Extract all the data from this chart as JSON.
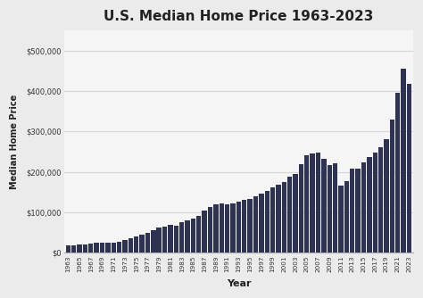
{
  "title": "U.S. Median Home Price 1963-2023",
  "xlabel": "Year",
  "ylabel": "Median Home Price",
  "bar_color": "#2e3353",
  "background_color": "#ebebeb",
  "plot_background": "#f5f5f5",
  "grid_color": "#d8d8d8",
  "ylim": [
    0,
    550000
  ],
  "yticks": [
    0,
    100000,
    200000,
    300000,
    400000,
    500000
  ],
  "years": [
    1963,
    1964,
    1965,
    1966,
    1967,
    1968,
    1969,
    1970,
    1971,
    1972,
    1973,
    1974,
    1975,
    1976,
    1977,
    1978,
    1979,
    1980,
    1981,
    1982,
    1983,
    1984,
    1985,
    1986,
    1987,
    1988,
    1989,
    1990,
    1991,
    1992,
    1993,
    1994,
    1995,
    1996,
    1997,
    1998,
    1999,
    2000,
    2001,
    2002,
    2003,
    2004,
    2005,
    2006,
    2007,
    2008,
    2009,
    2010,
    2011,
    2012,
    2013,
    2014,
    2015,
    2016,
    2017,
    2018,
    2019,
    2020,
    2021,
    2022,
    2023
  ],
  "prices": [
    18000,
    19300,
    20000,
    21400,
    22700,
    24700,
    25600,
    23900,
    25200,
    27600,
    32500,
    35800,
    39300,
    44200,
    48800,
    55700,
    62900,
    64600,
    68900,
    67900,
    75300,
    79900,
    84300,
    92000,
    104500,
    112500,
    120000,
    122900,
    120000,
    121500,
    126500,
    130000,
    133900,
    140000,
    145900,
    152500,
    161000,
    169000,
    175200,
    187900,
    195000,
    220000,
    240900,
    246500,
    247900,
    232100,
    216700,
    221800,
    166100,
    177200,
    208000,
    208900,
    223900,
    236400,
    248800,
    261600,
    280600,
    329000,
    397000,
    454700,
    417700
  ]
}
